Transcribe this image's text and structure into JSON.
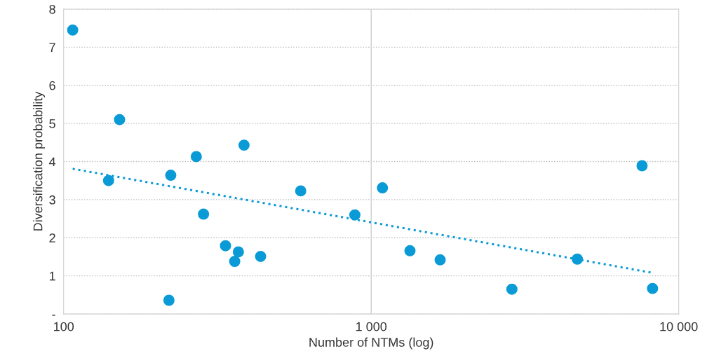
{
  "chart_data": {
    "type": "scatter",
    "xlabel": "Number of NTMs (log)",
    "ylabel": "Diversification probability",
    "log": "x",
    "grid": "y",
    "ref_lines": [
      {
        "axis": "x",
        "value": 1000,
        "color": "#cccccc",
        "line_style": "solid"
      }
    ],
    "marker": "circle",
    "legend": false,
    "xlim": [
      100,
      10000
    ],
    "xticks": [
      100,
      {
        "value": 1000,
        "label": "1 000"
      },
      {
        "value": 10000,
        "label": "10 000"
      }
    ],
    "ylim": [
      0,
      8
    ],
    "yticks": [
      {
        "value": 0,
        "label": "-"
      },
      1,
      2,
      3,
      4,
      5,
      6,
      7,
      8
    ],
    "series": [
      {
        "color": "#0a9bd7",
        "x": [
          107,
          152,
          140,
          223,
          270,
          285,
          220,
          336,
          360,
          370,
          386,
          437,
          590,
          885,
          1088,
          1337,
          1676,
          2868,
          4680,
          7600,
          8220
        ],
        "values": [
          7.45,
          5.1,
          3.5,
          3.64,
          4.13,
          2.62,
          0.36,
          1.79,
          1.38,
          1.63,
          4.43,
          1.51,
          3.23,
          2.6,
          3.31,
          1.66,
          1.42,
          0.65,
          1.44,
          3.89,
          0.67
        ]
      },
      {
        "type": "line",
        "color": "#0a9bd7",
        "line_style": "dotted",
        "marker": "none",
        "x": [
          107,
          8220
        ],
        "values": [
          3.81,
          1.08
        ]
      }
    ]
  }
}
